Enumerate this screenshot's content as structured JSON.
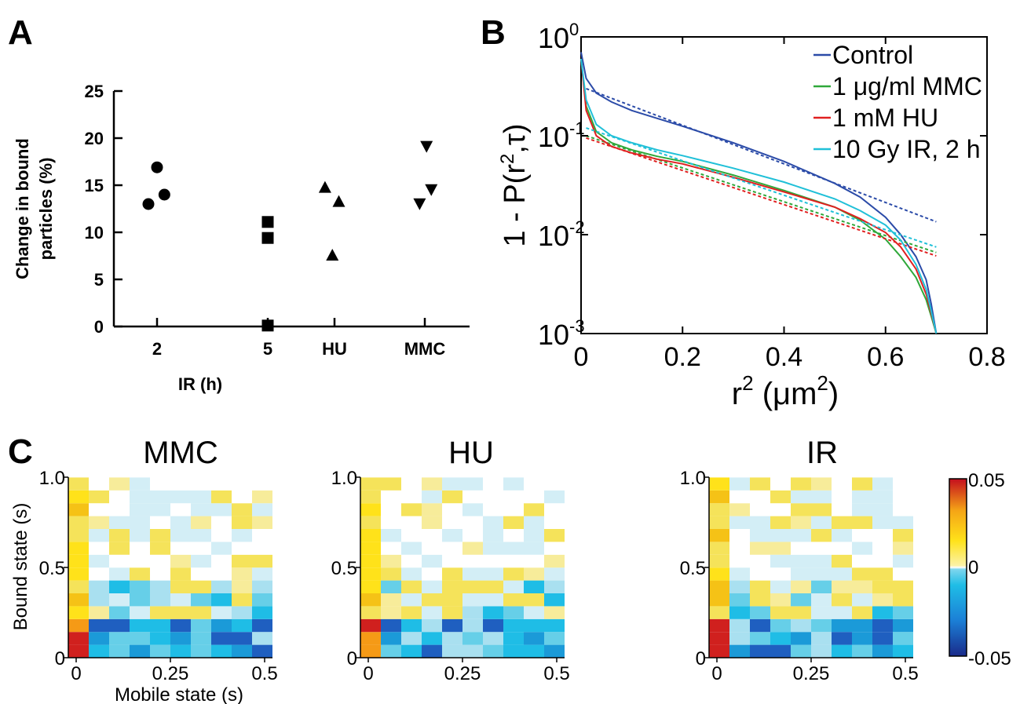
{
  "panels": {
    "A": "A",
    "B": "B",
    "C": "C"
  },
  "chart_data": [
    {
      "panel": "A",
      "type": "scatter",
      "ylabel_line1": "Change in bound",
      "ylabel_line2": "particles (%)",
      "xlabel": "IR (h)",
      "categories": [
        "2",
        "5",
        "HU",
        "MMC"
      ],
      "ylim": [
        0,
        25
      ],
      "yticks": [
        "0",
        "5",
        "10",
        "15",
        "20",
        "25"
      ],
      "series": [
        {
          "marker": "circle",
          "x": [
            -0.2,
            0.0,
            0.17
          ],
          "values": [
            13.0,
            16.9,
            14.0
          ]
        },
        {
          "marker": "square",
          "x": [
            0.0,
            0.0,
            0.0
          ],
          "values": [
            11.1,
            9.4,
            0.1
          ]
        },
        {
          "marker": "triangle-up",
          "x": [
            -0.22,
            0.1,
            -0.05
          ],
          "values": [
            14.7,
            13.2,
            7.5
          ]
        },
        {
          "marker": "triangle-down",
          "x": [
            -0.12,
            0.04,
            0.15
          ],
          "values": [
            13.1,
            19.2,
            14.6
          ]
        }
      ]
    },
    {
      "panel": "B",
      "type": "line",
      "ylabel": "1 - P(r",
      "ylabel_sup": "2",
      "ylabel_tail": ",τ)",
      "xlabel": "r",
      "xlabel_sup1": "2",
      "xlabel_mid": " (μm",
      "xlabel_sup2": "2",
      "xlabel_tail": ")",
      "xlim": [
        0,
        0.8
      ],
      "xticks": [
        "0",
        "0.2",
        "0.4",
        "0.6",
        "0.8"
      ],
      "ylim": [
        0.001,
        1
      ],
      "yscale": "log",
      "ytick_base": "10",
      "ytick_exps": [
        "-3",
        "-2",
        "-1",
        "0"
      ],
      "legend_position": "top-right",
      "series": [
        {
          "name": "Control",
          "color": "#2b4ba8",
          "x": [
            0,
            0.01,
            0.03,
            0.06,
            0.1,
            0.15,
            0.2,
            0.3,
            0.4,
            0.5,
            0.55,
            0.6,
            0.63,
            0.66,
            0.68,
            0.69,
            0.7
          ],
          "values": [
            0.7,
            0.38,
            0.27,
            0.22,
            0.18,
            0.15,
            0.125,
            0.085,
            0.055,
            0.033,
            0.024,
            0.015,
            0.01,
            0.006,
            0.0035,
            0.002,
            0.001
          ],
          "fit_x": [
            0.01,
            0.7
          ],
          "fit_values": [
            0.3,
            0.0135
          ]
        },
        {
          "name": "1 μg/ml MMC",
          "color": "#2fa83a",
          "x": [
            0,
            0.01,
            0.03,
            0.06,
            0.1,
            0.15,
            0.2,
            0.3,
            0.4,
            0.5,
            0.55,
            0.6,
            0.63,
            0.66,
            0.68,
            0.69,
            0.7
          ],
          "values": [
            0.6,
            0.2,
            0.11,
            0.085,
            0.072,
            0.062,
            0.055,
            0.04,
            0.028,
            0.019,
            0.014,
            0.009,
            0.006,
            0.0037,
            0.0022,
            0.0015,
            0.001
          ],
          "fit_x": [
            0.01,
            0.7
          ],
          "fit_values": [
            0.1,
            0.0066
          ]
        },
        {
          "name": "1 mM HU",
          "color": "#e02020",
          "x": [
            0,
            0.01,
            0.03,
            0.06,
            0.1,
            0.15,
            0.2,
            0.3,
            0.4,
            0.5,
            0.55,
            0.6,
            0.63,
            0.66,
            0.68,
            0.69,
            0.7
          ],
          "values": [
            0.6,
            0.18,
            0.1,
            0.078,
            0.067,
            0.058,
            0.052,
            0.038,
            0.027,
            0.019,
            0.0145,
            0.0105,
            0.0075,
            0.0045,
            0.0025,
            0.0016,
            0.001
          ],
          "fit_x": [
            0.01,
            0.7
          ],
          "fit_values": [
            0.095,
            0.0061
          ]
        },
        {
          "name": "10 Gy IR, 2 h",
          "color": "#20c0d8",
          "x": [
            0,
            0.01,
            0.03,
            0.06,
            0.1,
            0.15,
            0.2,
            0.3,
            0.4,
            0.5,
            0.55,
            0.6,
            0.63,
            0.66,
            0.68,
            0.69,
            0.7
          ],
          "values": [
            0.6,
            0.23,
            0.13,
            0.1,
            0.085,
            0.072,
            0.063,
            0.047,
            0.034,
            0.023,
            0.0175,
            0.0125,
            0.0088,
            0.005,
            0.0028,
            0.0017,
            0.001
          ],
          "fit_x": [
            0.01,
            0.7
          ],
          "fit_values": [
            0.12,
            0.0075
          ]
        }
      ]
    },
    {
      "panel": "C",
      "type": "heatmap",
      "titles": [
        "MMC",
        "HU",
        "IR"
      ],
      "xlabel": "Mobile state (s)",
      "ylabel": "Bound state (s)",
      "xticks": [
        "0",
        "0.25",
        "0.5"
      ],
      "yticks": [
        "0",
        "0.5",
        "1.0"
      ],
      "xlim": [
        0,
        0.5
      ],
      "ylim": [
        0,
        1.0
      ],
      "colorbar": {
        "min": -0.05,
        "max": 0.05,
        "labels": [
          "0.05",
          "0",
          "-0.05"
        ]
      }
    }
  ]
}
